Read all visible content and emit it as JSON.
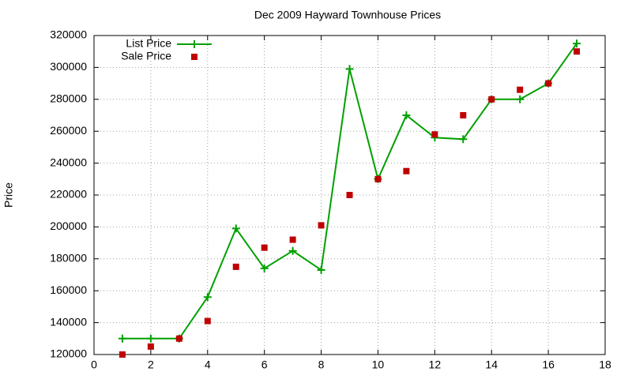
{
  "chart_data": {
    "type": "line",
    "title": "Dec 2009 Hayward Townhouse Prices",
    "y_label": "Price",
    "x": [
      1,
      2,
      3,
      4,
      5,
      6,
      7,
      8,
      9,
      10,
      11,
      12,
      13,
      14,
      15,
      16,
      17
    ],
    "series": [
      {
        "name": "List Price",
        "color": "#00a000",
        "style": "linespoints",
        "marker": "plus",
        "values": [
          130000,
          130000,
          130000,
          156000,
          199000,
          174000,
          185000,
          173000,
          299000,
          230000,
          270000,
          256000,
          255000,
          280000,
          280000,
          290000,
          315000
        ]
      },
      {
        "name": "Sale Price",
        "color": "#c00000",
        "style": "points",
        "marker": "square",
        "values": [
          120000,
          125000,
          130000,
          141000,
          175000,
          187000,
          192000,
          201000,
          220000,
          230000,
          235000,
          258000,
          270000,
          280000,
          286000,
          290000,
          310000
        ]
      }
    ],
    "xlim": [
      0,
      18
    ],
    "xticks": [
      0,
      2,
      4,
      6,
      8,
      10,
      12,
      14,
      16,
      18
    ],
    "ylim": [
      120000,
      320000
    ],
    "yticks": [
      120000,
      140000,
      160000,
      180000,
      200000,
      220000,
      240000,
      260000,
      280000,
      300000,
      320000
    ],
    "grid": true,
    "legend": "top-left"
  }
}
